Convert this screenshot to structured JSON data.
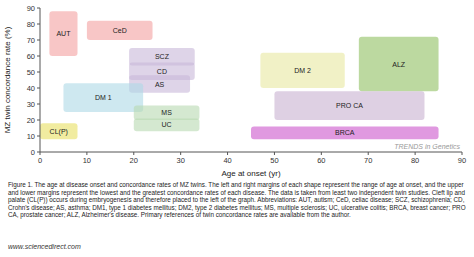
{
  "chart_data": {
    "type": "range_box",
    "title": "TRENDS in Genetics",
    "x_label": "Age at onset (yr)",
    "y_label": "MZ twin concordance rate (%)",
    "caption": "Figure 1.  The age at disease onset and concordance rates of MZ twins. The left and right margins of each shape represent the range of age at onset, and the upper and lower margins represent the lowest and the greatest concordance rates of each disease. The data is taken from least two independent twin studies. Cleft lip and palate (CL(P)) occurs during embryogenesis and therefore placed to the left of the graph. Abbreviations: AUT, autism; CeD, celiac disease; SCZ, schizophrenia; CD, Crohn's disease; AS, asthma; DM1, type 1 diabetes mellitus; DM2, type 2 diabetes mellitus; MS, multiple sclerosis; UC, ulcerative colitis; BRCA, breast cancer; PRO CA, prostate cancer; ALZ, Alzheimer's disease. Primary references of twin concordance rates are available from the author.",
    "source": "www.sciencedirect.com",
    "xlim": [
      0,
      90
    ],
    "ylim": [
      0,
      90
    ],
    "xticks": [
      0,
      10,
      20,
      30,
      40,
      50,
      60,
      70,
      80,
      90
    ],
    "yticks": [
      0,
      10,
      20,
      30,
      40,
      50,
      60,
      70,
      80,
      90
    ],
    "series": [
      {
        "name": "AUT",
        "color": "#f4a0a0",
        "x": [
          2,
          8
        ],
        "values": [
          60,
          88
        ]
      },
      {
        "name": "CeD",
        "color": "#f4a0a0",
        "x": [
          10,
          24
        ],
        "values": [
          70,
          82
        ]
      },
      {
        "name": "SCZ",
        "color": "#c8b8d8",
        "x": [
          19,
          33
        ],
        "values": [
          54,
          65
        ]
      },
      {
        "name": "CD",
        "color": "#c8b8d8",
        "x": [
          19,
          33
        ],
        "values": [
          45,
          56
        ]
      },
      {
        "name": "AS",
        "color": "#c8b8d8",
        "x": [
          19,
          32
        ],
        "values": [
          37,
          48
        ]
      },
      {
        "name": "DM 1",
        "color": "#add8e6",
        "x": [
          5,
          22
        ],
        "values": [
          25,
          43
        ]
      },
      {
        "name": "MS",
        "color": "#b8d8b0",
        "x": [
          20,
          34
        ],
        "values": [
          20,
          29
        ]
      },
      {
        "name": "UC",
        "color": "#b8d8b0",
        "x": [
          20,
          34
        ],
        "values": [
          13,
          21
        ]
      },
      {
        "name": "CL(P)",
        "color": "#e8e060",
        "x": [
          0,
          8
        ],
        "values": [
          8,
          18
        ]
      },
      {
        "name": "DM 2",
        "color": "#e8e8a0",
        "x": [
          47,
          65
        ],
        "values": [
          40,
          62
        ]
      },
      {
        "name": "ALZ",
        "color": "#90c060",
        "x": [
          68,
          85
        ],
        "values": [
          38,
          72
        ]
      },
      {
        "name": "PRO CA",
        "color": "#c8b0d0",
        "x": [
          50,
          82
        ],
        "values": [
          20,
          38
        ]
      },
      {
        "name": "BRCA",
        "color": "#cc55cc",
        "x": [
          45,
          85
        ],
        "values": [
          8,
          16
        ]
      }
    ]
  }
}
